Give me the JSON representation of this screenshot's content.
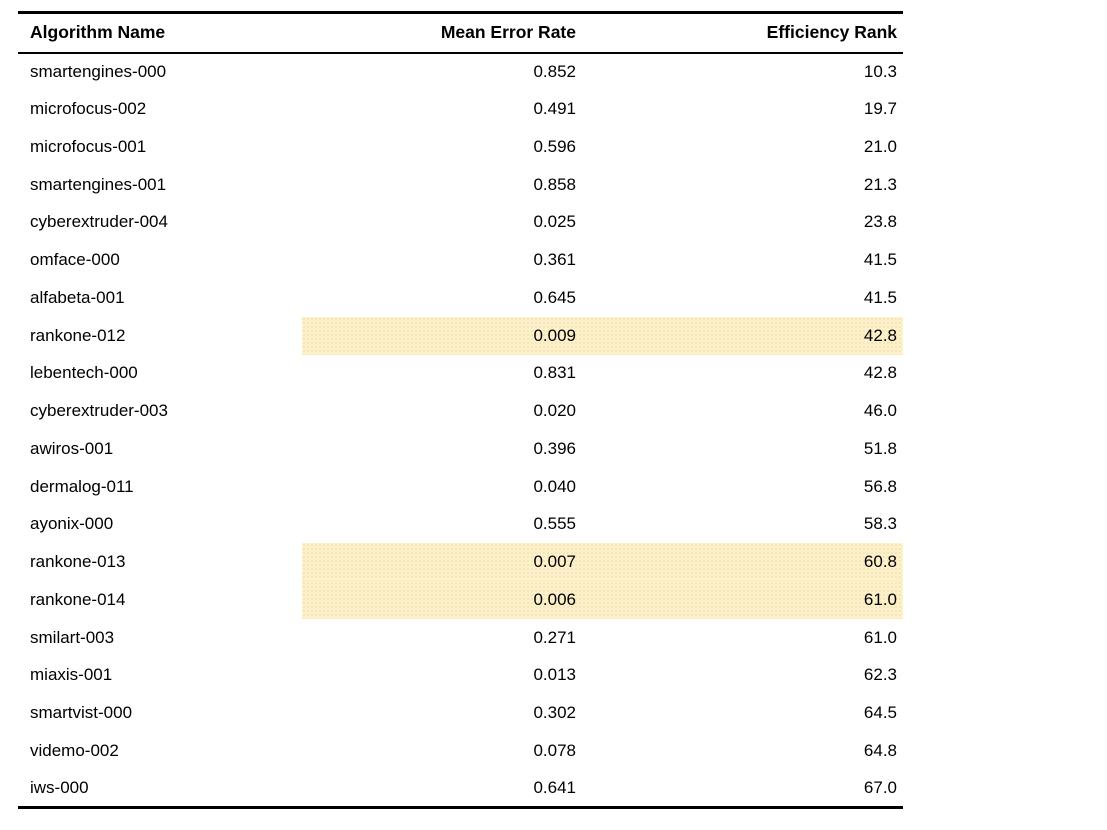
{
  "colors": {
    "highlight_background": "#fcf0cd",
    "highlight_dot": "#f6e2a8",
    "rule": "#000000",
    "text": "#000000"
  },
  "table": {
    "columns": [
      {
        "label": "Algorithm Name"
      },
      {
        "label": "Mean Error Rate"
      },
      {
        "label": "Efficiency Rank"
      }
    ],
    "rows": [
      {
        "name": "smartengines-000",
        "error": "0.852",
        "rank": "10.3",
        "highlighted": false
      },
      {
        "name": "microfocus-002",
        "error": "0.491",
        "rank": "19.7",
        "highlighted": false
      },
      {
        "name": "microfocus-001",
        "error": "0.596",
        "rank": "21.0",
        "highlighted": false
      },
      {
        "name": "smartengines-001",
        "error": "0.858",
        "rank": "21.3",
        "highlighted": false
      },
      {
        "name": "cyberextruder-004",
        "error": "0.025",
        "rank": "23.8",
        "highlighted": false
      },
      {
        "name": "omface-000",
        "error": "0.361",
        "rank": "41.5",
        "highlighted": false
      },
      {
        "name": "alfabeta-001",
        "error": "0.645",
        "rank": "41.5",
        "highlighted": false
      },
      {
        "name": "rankone-012",
        "error": "0.009",
        "rank": "42.8",
        "highlighted": true
      },
      {
        "name": "lebentech-000",
        "error": "0.831",
        "rank": "42.8",
        "highlighted": false
      },
      {
        "name": "cyberextruder-003",
        "error": "0.020",
        "rank": "46.0",
        "highlighted": false
      },
      {
        "name": "awiros-001",
        "error": "0.396",
        "rank": "51.8",
        "highlighted": false
      },
      {
        "name": "dermalog-011",
        "error": "0.040",
        "rank": "56.8",
        "highlighted": false
      },
      {
        "name": "ayonix-000",
        "error": "0.555",
        "rank": "58.3",
        "highlighted": false
      },
      {
        "name": "rankone-013",
        "error": "0.007",
        "rank": "60.8",
        "highlighted": true
      },
      {
        "name": "rankone-014",
        "error": "0.006",
        "rank": "61.0",
        "highlighted": true
      },
      {
        "name": "smilart-003",
        "error": "0.271",
        "rank": "61.0",
        "highlighted": false
      },
      {
        "name": "miaxis-001",
        "error": "0.013",
        "rank": "62.3",
        "highlighted": false
      },
      {
        "name": "smartvist-000",
        "error": "0.302",
        "rank": "64.5",
        "highlighted": false
      },
      {
        "name": "videmo-002",
        "error": "0.078",
        "rank": "64.8",
        "highlighted": false
      },
      {
        "name": "iws-000",
        "error": "0.641",
        "rank": "67.0",
        "highlighted": false
      }
    ]
  }
}
